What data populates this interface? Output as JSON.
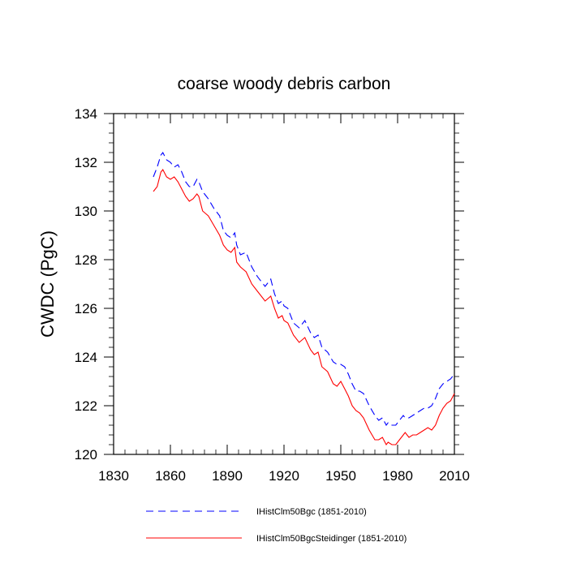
{
  "chart_data": {
    "type": "line",
    "title": "coarse woody debris carbon",
    "xlabel": "",
    "ylabel": "CWDC  (PgC)",
    "xlim": [
      1830,
      2010
    ],
    "ylim": [
      120,
      134
    ],
    "xticks": [
      1830,
      1860,
      1890,
      1920,
      1950,
      1980,
      2010
    ],
    "yticks": [
      120,
      122,
      124,
      126,
      128,
      130,
      132,
      134
    ],
    "grid": false,
    "legend_position": "bottom",
    "series": [
      {
        "name": "IHistClm50Bgc (1851-2010)",
        "color": "#0000ff",
        "dash": "dashed",
        "x": [
          1851,
          1853,
          1855,
          1856,
          1858,
          1860,
          1862,
          1864,
          1866,
          1868,
          1870,
          1872,
          1874,
          1875,
          1877,
          1880,
          1883,
          1886,
          1888,
          1890,
          1892,
          1894,
          1895,
          1897,
          1900,
          1903,
          1906,
          1910,
          1913,
          1915,
          1917,
          1919,
          1920,
          1922,
          1925,
          1928,
          1931,
          1934,
          1936,
          1938,
          1940,
          1943,
          1946,
          1948,
          1950,
          1952,
          1954,
          1956,
          1958,
          1960,
          1962,
          1965,
          1968,
          1970,
          1972,
          1974,
          1975,
          1977,
          1979,
          1981,
          1983,
          1984,
          1986,
          1988,
          1990,
          1992,
          1994,
          1996,
          1998,
          2000,
          2002,
          2004,
          2006,
          2008,
          2010
        ],
        "values": [
          131.4,
          131.8,
          132.3,
          132.4,
          132.1,
          132.0,
          131.8,
          131.9,
          131.6,
          131.2,
          131.0,
          131.0,
          131.3,
          131.2,
          130.8,
          130.5,
          130.1,
          129.8,
          129.2,
          129.0,
          128.9,
          129.1,
          128.6,
          128.2,
          128.3,
          127.7,
          127.3,
          126.9,
          127.2,
          126.6,
          126.2,
          126.3,
          126.1,
          126.0,
          125.4,
          125.2,
          125.5,
          125.0,
          124.8,
          124.9,
          124.4,
          124.2,
          123.8,
          123.7,
          123.7,
          123.6,
          123.3,
          122.9,
          122.6,
          122.6,
          122.5,
          122.0,
          121.6,
          121.4,
          121.5,
          121.2,
          121.3,
          121.2,
          121.2,
          121.4,
          121.6,
          121.5,
          121.5,
          121.6,
          121.7,
          121.8,
          121.9,
          121.9,
          122.0,
          122.3,
          122.7,
          122.9,
          123.0,
          123.1,
          123.3
        ]
      },
      {
        "name": "IHistClm50BgcSteidinger (1851-2010)",
        "color": "#ff0000",
        "dash": "solid",
        "x": [
          1851,
          1853,
          1855,
          1856,
          1858,
          1860,
          1862,
          1864,
          1866,
          1868,
          1870,
          1872,
          1874,
          1875,
          1877,
          1880,
          1883,
          1886,
          1888,
          1890,
          1892,
          1894,
          1895,
          1897,
          1900,
          1903,
          1906,
          1910,
          1913,
          1915,
          1917,
          1919,
          1920,
          1922,
          1925,
          1928,
          1931,
          1934,
          1936,
          1938,
          1940,
          1943,
          1946,
          1948,
          1950,
          1952,
          1954,
          1956,
          1958,
          1960,
          1962,
          1965,
          1968,
          1970,
          1972,
          1974,
          1975,
          1977,
          1979,
          1981,
          1983,
          1984,
          1986,
          1988,
          1990,
          1992,
          1994,
          1996,
          1998,
          2000,
          2002,
          2004,
          2006,
          2008,
          2010
        ],
        "values": [
          130.8,
          131.0,
          131.6,
          131.7,
          131.4,
          131.3,
          131.4,
          131.2,
          130.9,
          130.6,
          130.4,
          130.5,
          130.7,
          130.6,
          130.0,
          129.8,
          129.4,
          129.0,
          128.6,
          128.4,
          128.3,
          128.5,
          127.9,
          127.7,
          127.5,
          127.0,
          126.7,
          126.3,
          126.5,
          126.0,
          125.6,
          125.7,
          125.5,
          125.4,
          124.9,
          124.6,
          124.8,
          124.3,
          124.1,
          124.2,
          123.6,
          123.4,
          122.9,
          122.8,
          123.0,
          122.7,
          122.4,
          122.0,
          121.8,
          121.7,
          121.5,
          121.0,
          120.6,
          120.6,
          120.7,
          120.4,
          120.5,
          120.4,
          120.4,
          120.6,
          120.8,
          120.9,
          120.7,
          120.8,
          120.8,
          120.9,
          121.0,
          121.1,
          121.0,
          121.2,
          121.6,
          121.9,
          122.1,
          122.2,
          122.5
        ]
      }
    ]
  }
}
